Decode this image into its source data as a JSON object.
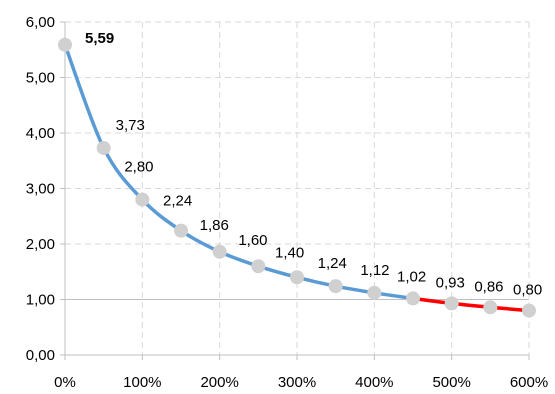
{
  "chart_data": {
    "type": "line",
    "x": [
      0,
      50,
      100,
      150,
      200,
      250,
      300,
      350,
      400,
      450,
      500,
      550,
      600
    ],
    "series": [
      {
        "values": [
          5.59,
          3.73,
          2.8,
          2.24,
          1.86,
          1.6,
          1.4,
          1.24,
          1.12,
          1.02,
          0.93,
          0.86,
          0.8
        ],
        "labels": [
          "5,59",
          "3,73",
          "2,80",
          "2,24",
          "1,86",
          "1,60",
          "1,40",
          "1,24",
          "1,12",
          "1,02",
          "0,93",
          "0,86",
          "0,80"
        ],
        "highlight_index": 0,
        "color": "#5b9bd5",
        "tail_color": "#ff0000",
        "tail_start_index": 9,
        "marker_color": "#d0d0d0"
      }
    ],
    "x_ticks": [
      0,
      100,
      200,
      300,
      400,
      500,
      600
    ],
    "x_tick_labels": [
      "0%",
      "100%",
      "200%",
      "300%",
      "400%",
      "500%",
      "600%"
    ],
    "y_ticks": [
      0,
      1,
      2,
      3,
      4,
      5,
      6
    ],
    "y_tick_labels": [
      "0,00",
      "1,00",
      "2,00",
      "3,00",
      "4,00",
      "5,00",
      "6,00"
    ],
    "xlim": [
      0,
      600
    ],
    "ylim": [
      0,
      6
    ],
    "grid": true,
    "title": "",
    "xlabel": "",
    "ylabel": ""
  }
}
